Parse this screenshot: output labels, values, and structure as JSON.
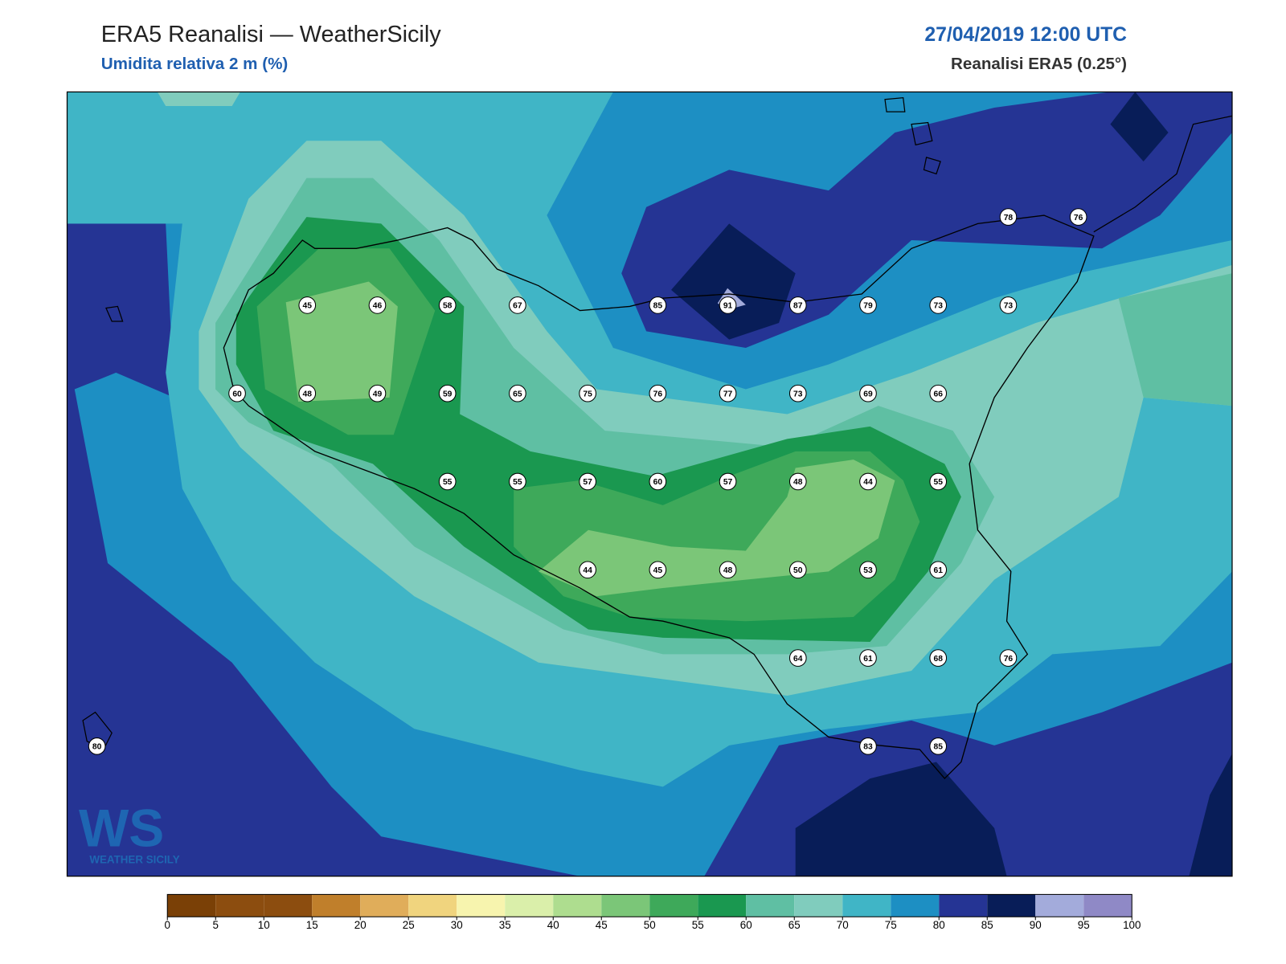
{
  "header": {
    "title": "ERA5 Reanalisi — WeatherSicily",
    "subtitle": "Umidita relativa 2 m (%)",
    "datetime": "27/04/2019 12:00 UTC",
    "source": "Reanalisi ERA5 (0.25°)"
  },
  "map": {
    "station_grid": [
      [
        null,
        null,
        null,
        null,
        null,
        null,
        null,
        null,
        null,
        null,
        null,
        null,
        null,
        78,
        76
      ],
      [
        null,
        null,
        null,
        45,
        46,
        58,
        67,
        null,
        85,
        91,
        87,
        79,
        73,
        73,
        null
      ],
      [
        null,
        null,
        60,
        48,
        49,
        59,
        65,
        75,
        76,
        77,
        73,
        69,
        66,
        null,
        null
      ],
      [
        null,
        null,
        null,
        null,
        null,
        55,
        55,
        57,
        60,
        57,
        48,
        44,
        55,
        null,
        null
      ],
      [
        null,
        null,
        null,
        null,
        null,
        null,
        null,
        44,
        45,
        48,
        50,
        53,
        61,
        null,
        null
      ],
      [
        null,
        null,
        null,
        null,
        null,
        null,
        null,
        null,
        null,
        null,
        64,
        61,
        68,
        76,
        null
      ],
      [
        80,
        null,
        null,
        null,
        null,
        null,
        null,
        null,
        null,
        null,
        null,
        83,
        85,
        null,
        null
      ]
    ],
    "logo": "WEATHER SICILY",
    "colorbar": {
      "ticks": [
        0,
        5,
        10,
        15,
        20,
        25,
        30,
        35,
        40,
        45,
        50,
        55,
        60,
        65,
        70,
        75,
        80,
        85,
        90,
        95,
        100
      ],
      "colors": [
        "#7a4006",
        "#8c4d0f",
        "#8c4d0f",
        "#c07f2b",
        "#e0ad5a",
        "#f0d47e",
        "#f7f4ae",
        "#daefaa",
        "#aedd8f",
        "#7bc678",
        "#3ea95a",
        "#1a9850",
        "#5fbfa3",
        "#80ccbd",
        "#40b5c6",
        "#1d8fc3",
        "#253494",
        "#081d58",
        "#a3abdb",
        "#8f89c6"
      ]
    }
  }
}
